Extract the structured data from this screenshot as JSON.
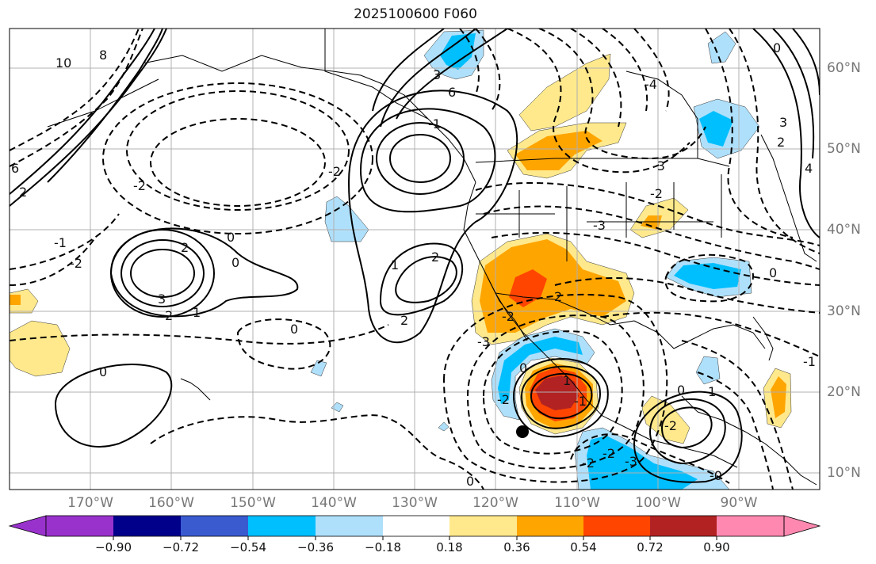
{
  "title": "2025100600 F060",
  "lat_labels": [
    "60°N",
    "50°N",
    "40°N",
    "30°N",
    "20°N",
    "10°N"
  ],
  "lon_labels": [
    "170°W",
    "160°W",
    "150°W",
    "140°W",
    "130°W",
    "120°W",
    "110°W",
    "100°W",
    "90°W"
  ],
  "colorbar": {
    "ticks": [
      "−0.90",
      "−0.72",
      "−0.54",
      "−0.36",
      "−0.18",
      "0.18",
      "0.36",
      "0.54",
      "0.72",
      "0.90"
    ],
    "colors": [
      "#9932cc",
      "#00008b",
      "#3a5bd0",
      "#00bfff",
      "#afe0fb",
      "#ffffff",
      "#ffe98c",
      "#ffa500",
      "#ff4500",
      "#b22222",
      "#ff88b0"
    ]
  },
  "contour_labels": [
    "10",
    "8",
    "6",
    "2",
    "-1",
    "-2",
    "0",
    "2",
    "3",
    "2",
    "1",
    "0",
    "-2",
    "0",
    "2",
    "1",
    "2",
    "-2",
    "6",
    "0",
    "3",
    "-1",
    "-4",
    "-3",
    "-2",
    "3",
    "2",
    "4",
    "-3",
    "0",
    "2",
    "-2",
    "-3",
    "0",
    "-2",
    "1",
    "-1",
    "0",
    "-2",
    "-2",
    "-3",
    "0",
    "-0",
    "-1",
    "0",
    "1",
    "-2"
  ],
  "legend": {
    "center_marker": "black-dot"
  },
  "colors": {
    "grid": "#b0b0b0",
    "tick_text": "#777777"
  }
}
